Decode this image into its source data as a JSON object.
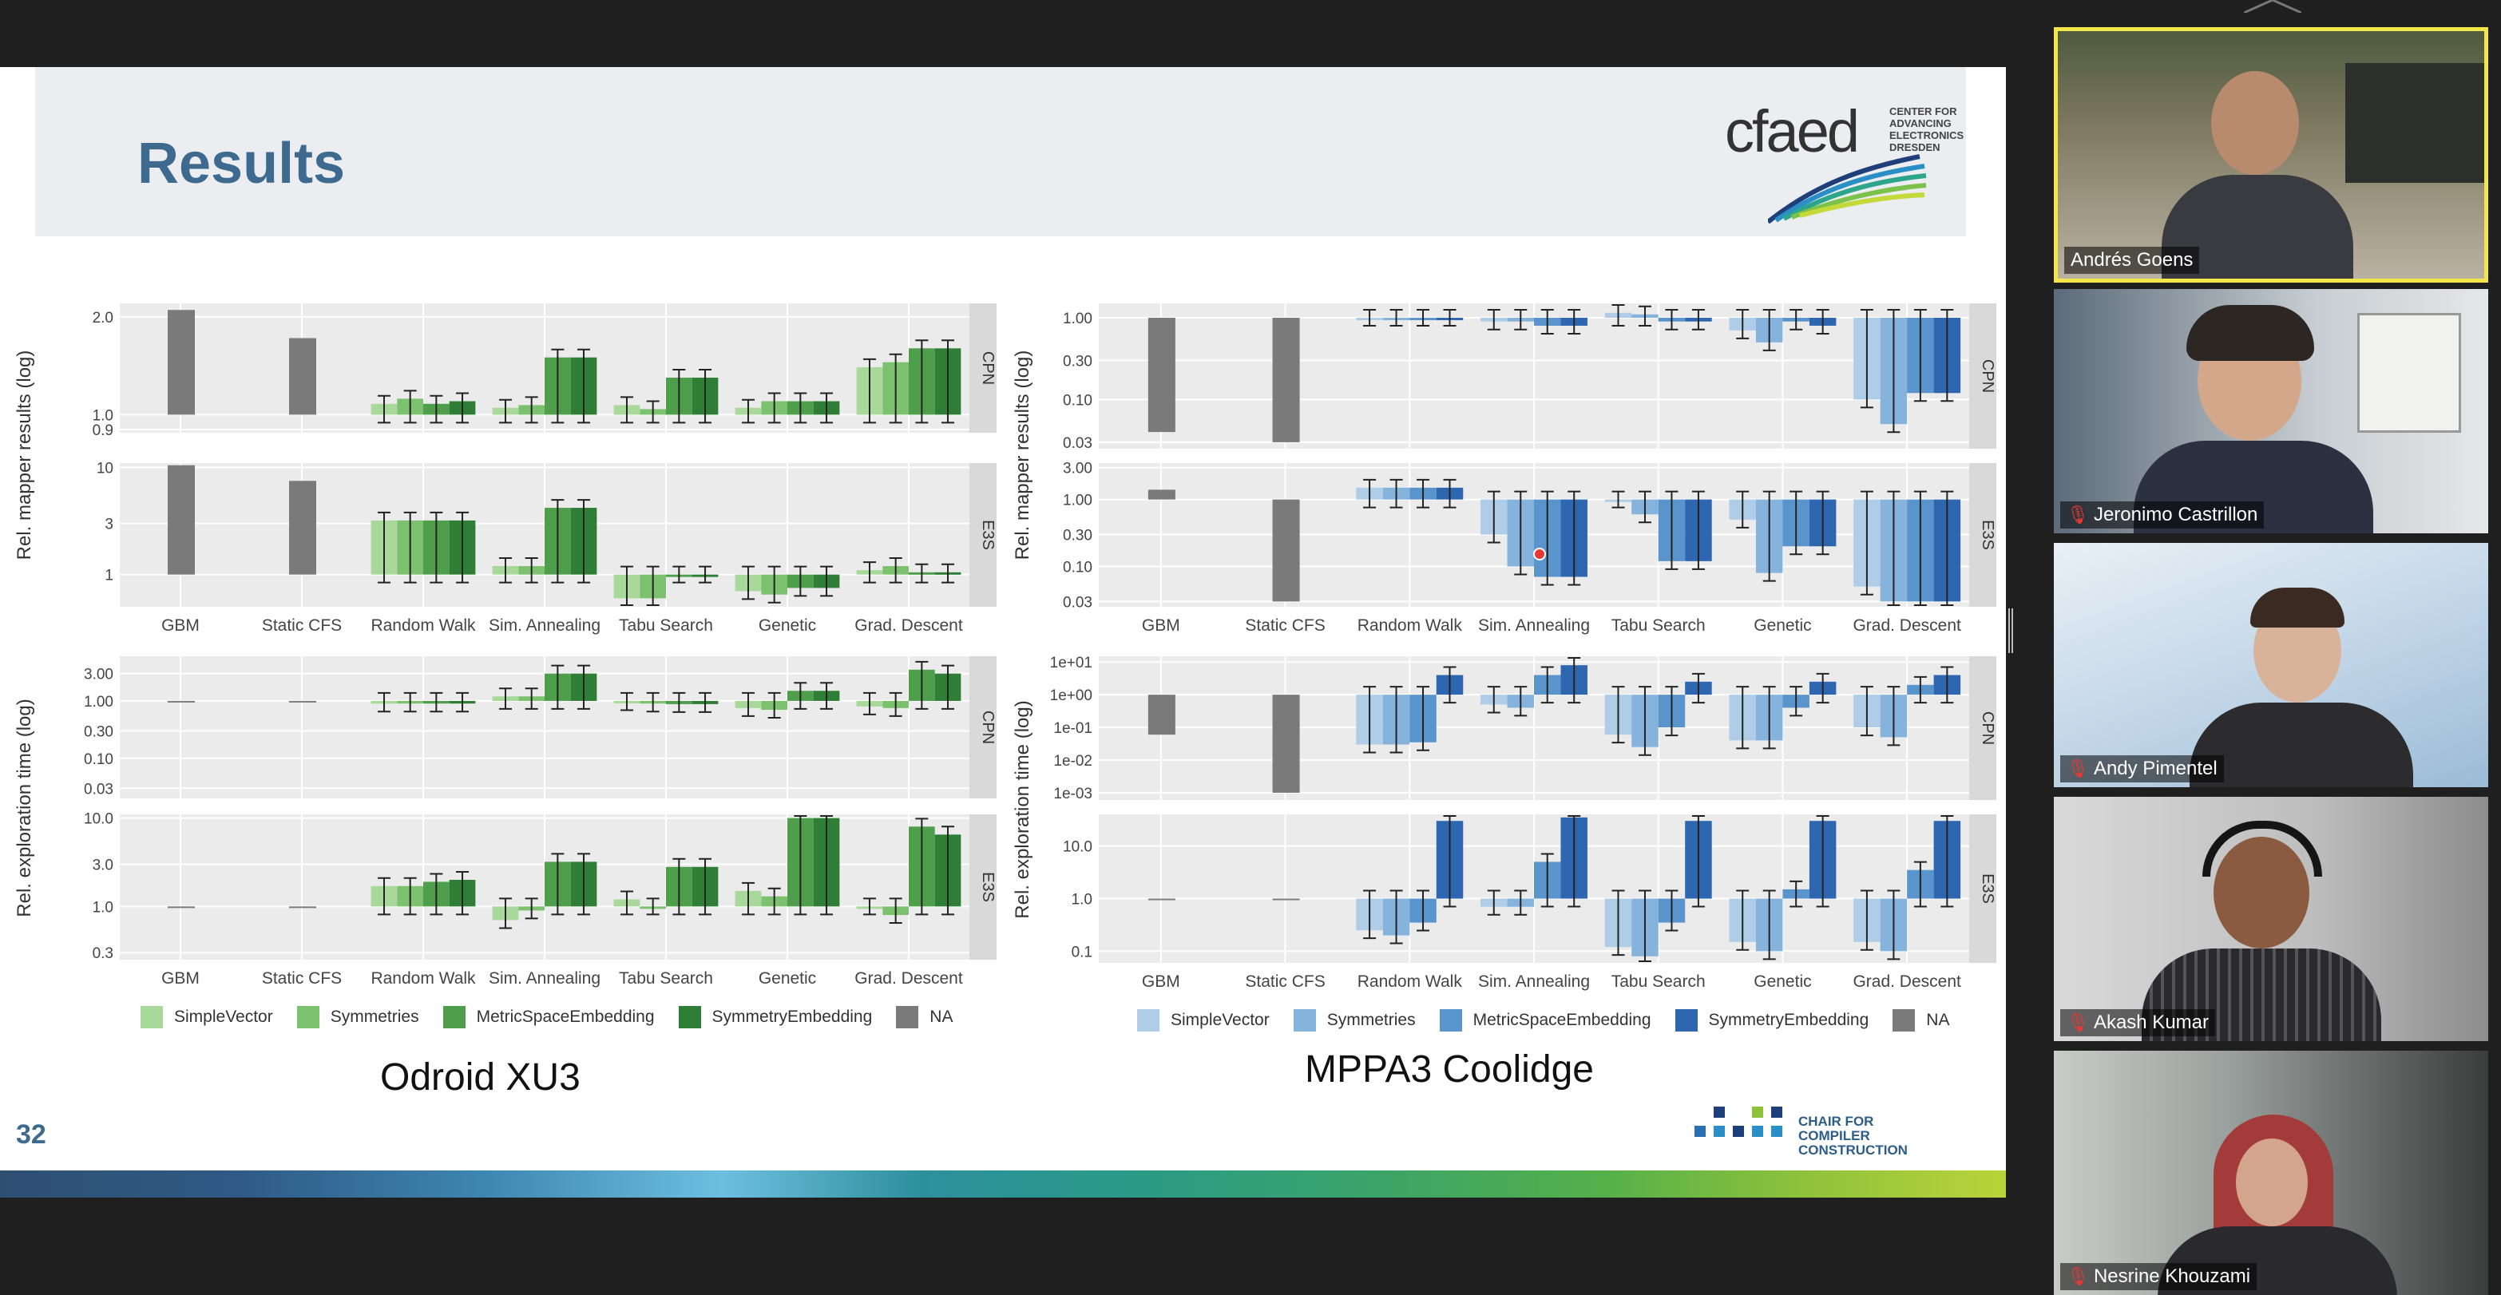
{
  "slide": {
    "title": "Results",
    "logo_text": "cfaed",
    "logo_sub": [
      "CENTER FOR",
      "ADVANCING",
      "ELECTRONICS",
      "DRESDEN"
    ],
    "slide_number": "32",
    "footer_logo_text": [
      "CHAIR FOR",
      "COMPILER",
      "CONSTRUCTION"
    ],
    "left_caption": "Odroid XU3",
    "right_caption": "MPPA3 Coolidge",
    "left_legend": [
      "SimpleVector",
      "Symmetries",
      "MetricSpaceEmbedding",
      "SymmetryEmbedding",
      "NA"
    ],
    "right_legend": [
      "SimpleVector",
      "Symmetries",
      "MetricSpaceEmbedding",
      "SymmetryEmbedding",
      "NA"
    ],
    "colors": {
      "green": [
        "#a8d89a",
        "#7cc26e",
        "#4e9e4c",
        "#2f7e36"
      ],
      "blue": [
        "#afcde6",
        "#86b3dc",
        "#5a94cc",
        "#2f66b0"
      ],
      "na": "#7a7a7a"
    }
  },
  "participants": [
    {
      "name": "Andrés Goens",
      "muted": false,
      "active": true
    },
    {
      "name": "Jeronimo Castrillon",
      "muted": true,
      "active": false
    },
    {
      "name": "Andy Pimentel",
      "muted": true,
      "active": false
    },
    {
      "name": "Akash Kumar",
      "muted": true,
      "active": false
    },
    {
      "name": "Nesrine Khouzami",
      "muted": true,
      "active": false
    }
  ],
  "chart_data": [
    {
      "type": "bar",
      "title": "Odroid XU3",
      "ylabel": "Rel. mapper results (log)",
      "categories": [
        "GBM",
        "Static CFS",
        "Random Walk",
        "Sim. Annealing",
        "Tabu Search",
        "Genetic",
        "Grad. Descent"
      ],
      "legend": [
        "SimpleVector",
        "Symmetries",
        "MetricSpaceEmbedding",
        "SymmetryEmbedding",
        "NA"
      ],
      "facets": [
        {
          "strip": "CPN",
          "ticks": [
            "0.9",
            "1.0",
            "2.0"
          ],
          "scale": "log",
          "ylim": [
            0.88,
            2.2
          ],
          "na": [
            2.1,
            1.72
          ],
          "series": [
            [
              1.08,
              1.12,
              1.08,
              1.1
            ],
            [
              1.05,
              1.07,
              1.5,
              1.5
            ],
            [
              1.07,
              1.04,
              1.3,
              1.3
            ],
            [
              1.05,
              1.1,
              1.1,
              1.1
            ],
            [
              1.4,
              1.45,
              1.6,
              1.6
            ]
          ]
        },
        {
          "strip": "E3S",
          "ticks": [
            "1",
            "3",
            "10"
          ],
          "scale": "log",
          "ylim": [
            0.5,
            11
          ],
          "na": [
            10.5,
            7.5
          ],
          "series": [
            [
              3.2,
              3.2,
              3.2,
              3.2
            ],
            [
              1.2,
              1.2,
              4.2,
              4.2
            ],
            [
              0.6,
              0.6,
              1.0,
              1.0
            ],
            [
              0.7,
              0.65,
              0.75,
              0.75
            ],
            [
              1.1,
              1.2,
              1.05,
              1.05
            ]
          ]
        }
      ]
    },
    {
      "type": "bar",
      "title": "Odroid XU3",
      "ylabel": "Rel. exploration time (log)",
      "categories": [
        "GBM",
        "Static CFS",
        "Random Walk",
        "Sim. Annealing",
        "Tabu Search",
        "Genetic",
        "Grad. Descent"
      ],
      "legend": [
        "SimpleVector",
        "Symmetries",
        "MetricSpaceEmbedding",
        "SymmetryEmbedding",
        "NA"
      ],
      "facets": [
        {
          "strip": "CPN",
          "ticks": [
            "0.03",
            "0.10",
            "0.30",
            "1.00",
            "3.00"
          ],
          "scale": "log",
          "ylim": [
            0.02,
            6
          ],
          "na": [
            1.0,
            1.0
          ],
          "series": [
            [
              0.9,
              0.9,
              0.9,
              0.9
            ],
            [
              1.2,
              1.2,
              3.0,
              3.0
            ],
            [
              0.95,
              0.9,
              0.88,
              0.88
            ],
            [
              0.75,
              0.7,
              1.5,
              1.5
            ],
            [
              0.8,
              0.75,
              3.5,
              3.0
            ]
          ]
        },
        {
          "strip": "E3S",
          "ticks": [
            "0.3",
            "1.0",
            "3.0",
            "10.0"
          ],
          "scale": "log",
          "ylim": [
            0.25,
            11
          ],
          "na": [
            1.0,
            1.0
          ],
          "series": [
            [
              1.7,
              1.7,
              1.9,
              2.0
            ],
            [
              0.7,
              0.9,
              3.2,
              3.2
            ],
            [
              1.2,
              1.0,
              2.8,
              2.8
            ],
            [
              1.5,
              1.3,
              10.0,
              10.0
            ],
            [
              1.0,
              0.8,
              8.0,
              6.5
            ]
          ]
        }
      ]
    },
    {
      "type": "bar",
      "title": "MPPA3 Coolidge",
      "ylabel": "Rel. mapper results (log)",
      "categories": [
        "GBM",
        "Static CFS",
        "Random Walk",
        "Sim. Annealing",
        "Tabu Search",
        "Genetic",
        "Grad. Descent"
      ],
      "legend": [
        "SimpleVector",
        "Symmetries",
        "MetricSpaceEmbedding",
        "SymmetryEmbedding",
        "NA"
      ],
      "facets": [
        {
          "strip": "CPN",
          "ticks": [
            "0.03",
            "0.10",
            "0.30",
            "1.00"
          ],
          "scale": "log",
          "ylim": [
            0.025,
            1.5
          ],
          "na": [
            0.04,
            0.03
          ],
          "series": [
            [
              1.0,
              1.0,
              1.0,
              1.0
            ],
            [
              0.9,
              0.9,
              0.8,
              0.8
            ],
            [
              1.15,
              1.1,
              0.9,
              0.9
            ],
            [
              0.7,
              0.5,
              0.9,
              0.8
            ],
            [
              0.1,
              0.05,
              0.12,
              0.12
            ]
          ]
        },
        {
          "strip": "E3S",
          "ticks": [
            "0.03",
            "0.10",
            "0.30",
            "1.00",
            "3.00"
          ],
          "scale": "log",
          "ylim": [
            0.025,
            3.5
          ],
          "na": [
            1.4,
            0.03
          ],
          "series": [
            [
              1.5,
              1.5,
              1.5,
              1.5
            ],
            [
              0.3,
              0.1,
              0.07,
              0.07
            ],
            [
              1.0,
              0.6,
              0.12,
              0.12
            ],
            [
              0.5,
              0.08,
              0.2,
              0.2
            ],
            [
              0.05,
              0.03,
              0.03,
              0.03
            ]
          ]
        }
      ]
    },
    {
      "type": "bar",
      "title": "MPPA3 Coolidge",
      "ylabel": "Rel. exploration time (log)",
      "categories": [
        "GBM",
        "Static CFS",
        "Random Walk",
        "Sim. Annealing",
        "Tabu Search",
        "Genetic",
        "Grad. Descent"
      ],
      "legend": [
        "SimpleVector",
        "Symmetries",
        "MetricSpaceEmbedding",
        "SymmetryEmbedding",
        "NA"
      ],
      "facets": [
        {
          "strip": "CPN",
          "ticks": [
            "1e-03",
            "1e-02",
            "1e-01",
            "1e+00",
            "1e+01"
          ],
          "scale": "log",
          "ylim": [
            0.0006,
            15
          ],
          "na": [
            0.06,
            0.001
          ],
          "series": [
            [
              0.03,
              0.03,
              0.035,
              4.0
            ],
            [
              0.5,
              0.4,
              4.0,
              8.0
            ],
            [
              0.06,
              0.025,
              0.1,
              2.5
            ],
            [
              0.04,
              0.04,
              0.4,
              2.5
            ],
            [
              0.1,
              0.05,
              2.0,
              4.0
            ]
          ]
        },
        {
          "strip": "E3S",
          "ticks": [
            "0.1",
            "1.0",
            "10.0"
          ],
          "scale": "log",
          "ylim": [
            0.06,
            40
          ],
          "na": [
            1.0,
            1.0
          ],
          "series": [
            [
              0.25,
              0.2,
              0.35,
              30
            ],
            [
              0.7,
              0.7,
              5.0,
              35
            ],
            [
              0.12,
              0.08,
              0.35,
              30
            ],
            [
              0.15,
              0.1,
              1.5,
              30
            ],
            [
              0.15,
              0.1,
              3.5,
              30
            ]
          ]
        }
      ]
    }
  ]
}
